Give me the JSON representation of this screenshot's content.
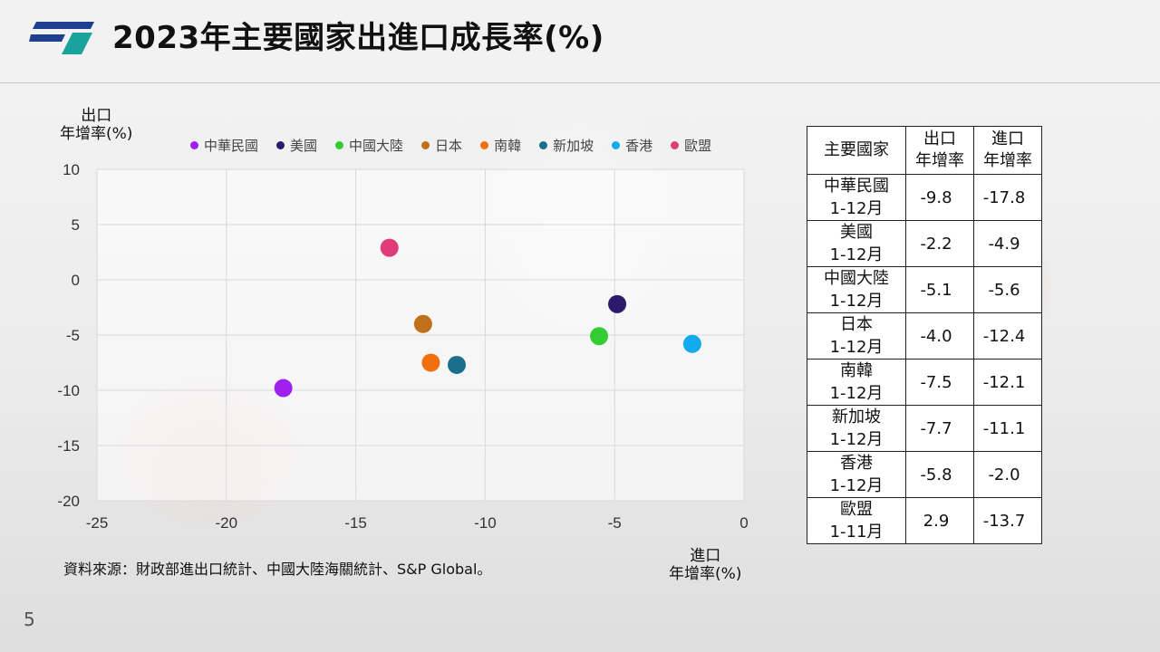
{
  "title": "2023年主要國家出進口成長率(%)",
  "page_number": "5",
  "source": "資料來源：財政部進出口統計、中國大陸海關統計、S&P  Global。",
  "y_axis_label": [
    "出口",
    "年增率(%)"
  ],
  "x_axis_label": [
    "進口",
    "年增率(%)"
  ],
  "colors": {
    "grid": "#d9d9d9",
    "tick_text": "#333333",
    "logo_blue": "#1f3f8f",
    "logo_teal": "#1aa39a"
  },
  "chart_data": {
    "type": "scatter",
    "xlabel": "進口年增率(%)",
    "ylabel": "出口年增率(%)",
    "xlim": [
      -25,
      0
    ],
    "ylim": [
      -20,
      10
    ],
    "x_ticks": [
      "-25",
      "-20",
      "-15",
      "-10",
      "-5",
      "0"
    ],
    "y_ticks": [
      "10",
      "5",
      "0",
      "-5",
      "-10",
      "-15",
      "-20"
    ],
    "grid": true,
    "legend_position": "top",
    "series": [
      {
        "name": "中華民國",
        "color": "#a020f0",
        "x": -17.8,
        "y": -9.8
      },
      {
        "name": "美國",
        "color": "#2e1a6b",
        "x": -4.9,
        "y": -2.2
      },
      {
        "name": "中國大陸",
        "color": "#33cc33",
        "x": -5.6,
        "y": -5.1
      },
      {
        "name": "日本",
        "color": "#c0701a",
        "x": -12.4,
        "y": -4.0
      },
      {
        "name": "南韓",
        "color": "#f07010",
        "x": -12.1,
        "y": -7.5
      },
      {
        "name": "新加坡",
        "color": "#1a6e8e",
        "x": -11.1,
        "y": -7.7
      },
      {
        "name": "香港",
        "color": "#14aaee",
        "x": -2.0,
        "y": -5.8
      },
      {
        "name": "歐盟",
        "color": "#e03c7a",
        "x": -13.7,
        "y": 2.9
      }
    ]
  },
  "table": {
    "header": {
      "col1": "主要國家",
      "col2": [
        "出口",
        "年增率"
      ],
      "col3": [
        "進口",
        "年增率"
      ]
    },
    "rows": [
      {
        "country": "中華民國",
        "period": "1-12月",
        "export": "-9.8",
        "import": "-17.8"
      },
      {
        "country": "美國",
        "period": "1-12月",
        "export": "-2.2",
        "import": "-4.9"
      },
      {
        "country": "中國大陸",
        "period": "1-12月",
        "export": "-5.1",
        "import": "-5.6"
      },
      {
        "country": "日本",
        "period": "1-12月",
        "export": "-4.0",
        "import": "-12.4"
      },
      {
        "country": "南韓",
        "period": "1-12月",
        "export": "-7.5",
        "import": "-12.1"
      },
      {
        "country": "新加坡",
        "period": "1-12月",
        "export": "-7.7",
        "import": "-11.1"
      },
      {
        "country": "香港",
        "period": "1-12月",
        "export": "-5.8",
        "import": "-2.0"
      },
      {
        "country": "歐盟",
        "period": "1-11月",
        "export": "2.9",
        "import": "-13.7"
      }
    ]
  }
}
